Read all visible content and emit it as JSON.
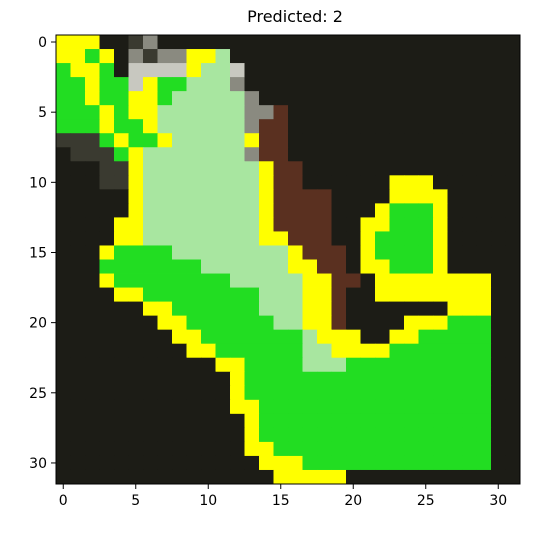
{
  "chart_data": {
    "type": "heatmap",
    "title": "Predicted: 2",
    "xlabel": "",
    "ylabel": "",
    "grid_size": [
      32,
      32
    ],
    "xlim": [
      -0.5,
      31.5
    ],
    "ylim": [
      31.5,
      -0.5
    ],
    "x_ticks": [
      0,
      5,
      10,
      15,
      20,
      25,
      30
    ],
    "y_ticks": [
      0,
      5,
      10,
      15,
      20,
      25,
      30
    ],
    "x_tick_labels": [
      "0",
      "5",
      "10",
      "15",
      "20",
      "25",
      "30"
    ],
    "y_tick_labels": [
      "0",
      "5",
      "10",
      "15",
      "20",
      "25",
      "30"
    ],
    "colors": {
      "highlight_boundary": "#ffff00",
      "mask_green": "#22dd22",
      "light_green": "#a8e6a0",
      "background_dark": "#1c1c16",
      "mid_dark": "#3a3a30",
      "grey": "#8a8a80",
      "pale": "#c8c8c0",
      "brown": "#5a3020",
      "frame": "#000000"
    },
    "value_legend": {
      "0": "dark background",
      "1": "mid dark",
      "2": "grey",
      "3": "pale",
      "4": "brown",
      "5": "yellow boundary",
      "6": "bright green mask",
      "7": "light green mask"
    },
    "pixels": [
      "55500120000000000000000000000000",
      "55650212255700000000000000000000",
      "65560333357730000000000000000000",
      "66566356677720000000000000000000",
      "66566556777772000000000000000000",
      "66656557777772240000000000000000",
      "66656657777772440000000000000000",
      "11165665777775440000000000000000",
      "01116577777772440000000000000000",
      "00011577777777544000000000000000",
      "00011577777777544000000555000000",
      "00000577777777544440000555500000",
      "00000577777777544440005666500000",
      "00005577777777544440055666500000",
      "00005577777777554440056666500000",
      "00056666777777775444056666500000",
      "00066666667777775544055666500000",
      "00056666666677777554405555555500",
      "00005566666666777554005555555500",
      "00000055666666777554000000055500",
      "00000005566666677554000055566600",
      "00000000556666666755500556666600",
      "00000000055666666775555666666600",
      "00000000000556666777666666666600",
      "00000000000056666666666666666600",
      "00000000000056666666666666666600",
      "00000000000055666666666666666600",
      "00000000000005666666666666666600",
      "00000000000005666666666666666600",
      "00000000000005566666666666666600",
      "00000000000000555666666666666600",
      "00000000000000055555000000000000"
    ]
  }
}
